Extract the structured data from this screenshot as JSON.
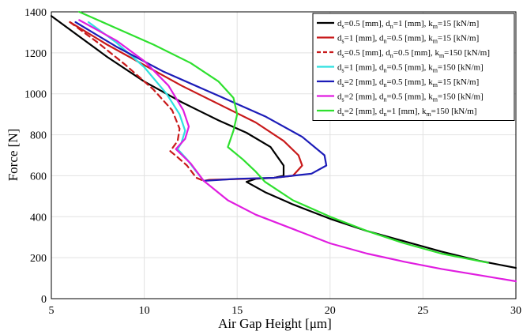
{
  "chart_data": {
    "type": "line",
    "title": "",
    "xlabel": "Air Gap Height [μm]",
    "ylabel": "Force [N]",
    "xlim": [
      5,
      30
    ],
    "ylim": [
      0,
      1400
    ],
    "xticks": [
      5,
      10,
      15,
      20,
      25,
      30
    ],
    "yticks": [
      0,
      200,
      400,
      600,
      800,
      1000,
      1200,
      1400
    ],
    "grid": true,
    "legend_position": "top-right",
    "series": [
      {
        "name": "ds=0.5 [mm], dn=1 [mm], km=15 [kN/m]",
        "legend": [
          [
            "d",
            "s",
            "=0.5 [mm], "
          ],
          [
            "d",
            "n",
            "=1 [mm], "
          ],
          [
            "k",
            "m",
            "=15 [kN/m]"
          ]
        ],
        "color": "#000000",
        "dash": "solid",
        "points": [
          [
            5.0,
            1380
          ],
          [
            6.5,
            1280
          ],
          [
            8.0,
            1180
          ],
          [
            10.0,
            1060
          ],
          [
            12.0,
            960
          ],
          [
            14.0,
            870
          ],
          [
            15.5,
            810
          ],
          [
            16.8,
            740
          ],
          [
            17.5,
            650
          ],
          [
            17.5,
            600
          ],
          [
            17.0,
            590
          ],
          [
            16.0,
            585
          ],
          [
            15.5,
            570
          ],
          [
            16.5,
            520
          ],
          [
            18.0,
            460
          ],
          [
            20.0,
            390
          ],
          [
            22.0,
            330
          ],
          [
            24.0,
            280
          ],
          [
            26.0,
            230
          ],
          [
            28.0,
            185
          ],
          [
            30.0,
            150
          ]
        ]
      },
      {
        "name": "ds=1 [mm], dn=0.5 [mm], km=15 [kN/m]",
        "legend": [
          [
            "d",
            "s",
            "=1 [mm], "
          ],
          [
            "d",
            "n",
            "=0.5 [mm], "
          ],
          [
            "k",
            "m",
            "=15 [kN/m]"
          ]
        ],
        "color": "#c8191a",
        "dash": "solid",
        "points": [
          [
            6.0,
            1350
          ],
          [
            8.0,
            1240
          ],
          [
            10.0,
            1140
          ],
          [
            12.0,
            1040
          ],
          [
            14.0,
            950
          ],
          [
            16.0,
            860
          ],
          [
            17.5,
            770
          ],
          [
            18.3,
            700
          ],
          [
            18.5,
            650
          ],
          [
            18.0,
            600
          ],
          [
            17.0,
            590
          ],
          [
            15.5,
            585
          ],
          [
            13.5,
            580
          ],
          [
            13.2,
            575
          ]
        ]
      },
      {
        "name": "ds=0.5 [mm], dn=0.5 [mm], km=150 [kN/m]",
        "legend": [
          [
            "d",
            "s",
            "=0.5 [mm], "
          ],
          [
            "d",
            "n",
            "=0.5 [mm], "
          ],
          [
            "k",
            "m",
            "=150 [kN/m]"
          ]
        ],
        "color": "#c8191a",
        "dash": "dashed",
        "points": [
          [
            6.0,
            1350
          ],
          [
            7.5,
            1250
          ],
          [
            9.0,
            1140
          ],
          [
            10.5,
            1020
          ],
          [
            11.5,
            920
          ],
          [
            11.9,
            830
          ],
          [
            11.8,
            770
          ],
          [
            11.4,
            720
          ],
          [
            11.8,
            690
          ],
          [
            12.3,
            650
          ],
          [
            12.8,
            590
          ],
          [
            13.2,
            575
          ]
        ]
      },
      {
        "name": "ds=1 [mm], dn=0.5 [mm], km=150 [kN/m]",
        "legend": [
          [
            "d",
            "s",
            "=1 [mm], "
          ],
          [
            "d",
            "n",
            "=0.5 [mm], "
          ],
          [
            "k",
            "m",
            "=150 [kN/m]"
          ]
        ],
        "color": "#2fe0e0",
        "dash": "solid",
        "points": [
          [
            7.0,
            1350
          ],
          [
            8.5,
            1250
          ],
          [
            10.0,
            1130
          ],
          [
            11.2,
            1000
          ],
          [
            11.9,
            900
          ],
          [
            12.2,
            820
          ],
          [
            12.0,
            760
          ],
          [
            11.8,
            730
          ],
          [
            12.3,
            680
          ],
          [
            12.8,
            620
          ],
          [
            13.2,
            575
          ]
        ]
      },
      {
        "name": "ds=2 [mm], dn=0.5 [mm], km=15 [kN/m]",
        "legend": [
          [
            "d",
            "s",
            "=2 [mm], "
          ],
          [
            "d",
            "n",
            "=0.5 [mm], "
          ],
          [
            "k",
            "m",
            "=15 [kN/m]"
          ]
        ],
        "color": "#1c1cb8",
        "dash": "solid",
        "points": [
          [
            6.3,
            1350
          ],
          [
            8.5,
            1230
          ],
          [
            11.0,
            1110
          ],
          [
            14.0,
            990
          ],
          [
            16.5,
            890
          ],
          [
            18.5,
            790
          ],
          [
            19.7,
            700
          ],
          [
            19.8,
            650
          ],
          [
            19.0,
            610
          ],
          [
            17.0,
            590
          ],
          [
            15.0,
            585
          ],
          [
            13.2,
            575
          ]
        ]
      },
      {
        "name": "ds=2 [mm], dn=0.5 [mm], km=150 [kN/m]",
        "legend": [
          [
            "d",
            "s",
            "=2 [mm], "
          ],
          [
            "d",
            "n",
            "=0.5 [mm], "
          ],
          [
            "k",
            "m",
            "=150 [kN/m]"
          ]
        ],
        "color": "#e01de0",
        "dash": "solid",
        "points": [
          [
            6.5,
            1360
          ],
          [
            8.5,
            1260
          ],
          [
            10.0,
            1160
          ],
          [
            11.3,
            1040
          ],
          [
            12.1,
            920
          ],
          [
            12.4,
            840
          ],
          [
            12.2,
            780
          ],
          [
            11.7,
            730
          ],
          [
            12.5,
            660
          ],
          [
            13.2,
            575
          ],
          [
            14.5,
            480
          ],
          [
            16.0,
            410
          ],
          [
            18.0,
            340
          ],
          [
            20.0,
            270
          ],
          [
            22.0,
            220
          ],
          [
            24.0,
            180
          ],
          [
            26.0,
            145
          ],
          [
            28.0,
            115
          ],
          [
            30.0,
            85
          ]
        ]
      },
      {
        "name": "ds=2 [mm], dn=1 [mm], km=150 [kN/m]",
        "legend": [
          [
            "d",
            "s",
            "=2 [mm], "
          ],
          [
            "d",
            "n",
            "=1 [mm], "
          ],
          [
            "k",
            "m",
            "=150 [kN/m]"
          ]
        ],
        "color": "#2ee02e",
        "dash": "solid",
        "points": [
          [
            6.5,
            1400
          ],
          [
            8.5,
            1320
          ],
          [
            10.5,
            1240
          ],
          [
            12.5,
            1150
          ],
          [
            14.0,
            1060
          ],
          [
            14.8,
            980
          ],
          [
            15.0,
            900
          ],
          [
            14.8,
            820
          ],
          [
            14.5,
            740
          ],
          [
            15.3,
            680
          ],
          [
            16.0,
            620
          ],
          [
            16.5,
            570
          ],
          [
            18.0,
            480
          ],
          [
            20.0,
            400
          ],
          [
            22.0,
            330
          ],
          [
            24.0,
            270
          ],
          [
            26.0,
            220
          ],
          [
            28.5,
            175
          ]
        ]
      }
    ]
  }
}
